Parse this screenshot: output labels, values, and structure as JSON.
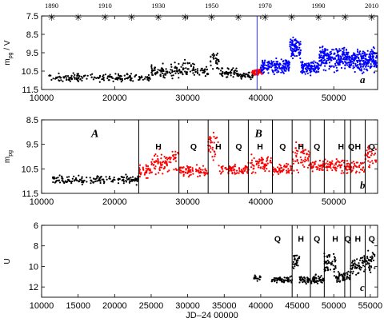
{
  "chart_data": [
    {
      "type": "scatter",
      "panel_letter": "a",
      "ylabel": "m_pg / V",
      "xlabel": "",
      "xlim": [
        10000,
        56000
      ],
      "ylim": [
        11.5,
        7.5
      ],
      "y_inverted": true,
      "xticks": [
        10000,
        20000,
        30000,
        40000,
        50000
      ],
      "xtick_labels": [
        "10000",
        "20000",
        "30000",
        "40000",
        "50000"
      ],
      "yticks": [
        7.5,
        8.5,
        9.5,
        10.5,
        11.5
      ],
      "ytick_labels": [
        "7.5",
        "8.5",
        "9.5",
        "10.5",
        "11.5"
      ],
      "top_axis_years": [
        "1890",
        "1910",
        "1930",
        "1950",
        "1970",
        "1990",
        "2010"
      ],
      "top_axis_year_values": [
        1890,
        1910,
        1930,
        1950,
        1970,
        1990,
        2010
      ],
      "top_axis_star_years": [
        1890,
        1900,
        1910,
        1920,
        1930,
        1940,
        1950,
        1960,
        1970,
        1980,
        1990,
        2000,
        2010
      ],
      "vertical_lines": [
        {
          "x": 39500,
          "color": "#3333ff"
        }
      ],
      "series": [
        {
          "color": "#000000",
          "segments": [
            {
              "x0": 11000,
              "x1": 25000,
              "base": 10.85,
              "spread": 0.3,
              "density": 0.9
            },
            {
              "x0": 25000,
              "x1": 28000,
              "base": 10.55,
              "spread": 0.55,
              "density": 1.4
            },
            {
              "x0": 28000,
              "x1": 31000,
              "base": 10.4,
              "spread": 0.6,
              "density": 1.4
            },
            {
              "x0": 31000,
              "x1": 33000,
              "base": 10.55,
              "spread": 0.35,
              "density": 1
            },
            {
              "x0": 33000,
              "x1": 34300,
              "base": 9.9,
              "spread": 0.75,
              "density": 1.6
            },
            {
              "x0": 34300,
              "x1": 37000,
              "base": 10.6,
              "spread": 0.35,
              "density": 1.3
            },
            {
              "x0": 37000,
              "x1": 39000,
              "base": 10.75,
              "spread": 0.25,
              "density": 1.3
            }
          ]
        },
        {
          "color": "#ff0000",
          "segments": [
            {
              "x0": 38800,
              "x1": 40200,
              "base": 10.55,
              "spread": 0.2,
              "density": 4
            }
          ]
        },
        {
          "color": "#0000ff",
          "segments": [
            {
              "x0": 40000,
              "x1": 44000,
              "base": 10.2,
              "spread": 0.55,
              "density": 3
            },
            {
              "x0": 44000,
              "x1": 45500,
              "base": 9.2,
              "spread": 0.9,
              "density": 4
            },
            {
              "x0": 45500,
              "x1": 48000,
              "base": 10.3,
              "spread": 0.5,
              "density": 3
            },
            {
              "x0": 48000,
              "x1": 52000,
              "base": 9.8,
              "spread": 0.9,
              "density": 4
            },
            {
              "x0": 52000,
              "x1": 56000,
              "base": 9.9,
              "spread": 0.9,
              "density": 4
            }
          ]
        }
      ]
    },
    {
      "type": "scatter",
      "panel_letter": "b",
      "ylabel": "m_pg",
      "xlabel": "",
      "xlim": [
        10000,
        56000
      ],
      "ylim": [
        11.5,
        8.5
      ],
      "y_inverted": true,
      "xticks": [
        10000,
        20000,
        30000,
        40000,
        50000
      ],
      "xtick_labels": [
        "10000",
        "20000",
        "30000",
        "40000",
        "50000"
      ],
      "yticks": [
        8.5,
        9.5,
        10.5,
        11.5
      ],
      "ytick_labels": [
        "8.5",
        "9.5",
        "10.5",
        "11.5"
      ],
      "vertical_lines": [
        23300,
        28800,
        32800,
        35600,
        38300,
        41600,
        44300,
        46800,
        48700,
        51500,
        52300,
        54300
      ],
      "annotations": [
        {
          "text": "A",
          "x": 17300,
          "y": 9.2,
          "style": "italic"
        },
        {
          "text": "B",
          "x": 39700,
          "y": 9.2,
          "style": "italic"
        },
        {
          "text": "H",
          "x": 26000,
          "y": 9.7,
          "style": "bold"
        },
        {
          "text": "Q",
          "x": 30800,
          "y": 9.7,
          "style": "bold"
        },
        {
          "text": "H",
          "x": 34200,
          "y": 9.7,
          "style": "bold"
        },
        {
          "text": "Q",
          "x": 37000,
          "y": 9.7,
          "style": "bold"
        },
        {
          "text": "H",
          "x": 39900,
          "y": 9.7,
          "style": "bold"
        },
        {
          "text": "Q",
          "x": 43000,
          "y": 9.7,
          "style": "bold"
        },
        {
          "text": "H",
          "x": 45500,
          "y": 9.7,
          "style": "bold"
        },
        {
          "text": "Q",
          "x": 47700,
          "y": 9.7,
          "style": "bold"
        },
        {
          "text": "H",
          "x": 51000,
          "y": 9.7,
          "style": "bold"
        },
        {
          "text": "Q",
          "x": 52400,
          "y": 9.7,
          "style": "bold"
        },
        {
          "text": "H",
          "x": 53300,
          "y": 9.7,
          "style": "bold"
        },
        {
          "text": "Q",
          "x": 55200,
          "y": 9.7,
          "style": "bold"
        }
      ],
      "series": [
        {
          "color": "#000000",
          "segments": [
            {
              "x0": 11500,
              "x1": 23300,
              "base": 10.95,
              "spread": 0.25,
              "density": 1
            }
          ]
        },
        {
          "color": "#ff0000",
          "segments": [
            {
              "x0": 23300,
              "x1": 25000,
              "base": 10.6,
              "spread": 0.35,
              "density": 1.5
            },
            {
              "x0": 25000,
              "x1": 28800,
              "base": 10.2,
              "spread": 0.7,
              "density": 1.6
            },
            {
              "x0": 28800,
              "x1": 32800,
              "base": 10.6,
              "spread": 0.3,
              "density": 1.4
            },
            {
              "x0": 32800,
              "x1": 34200,
              "base": 9.6,
              "spread": 0.85,
              "density": 1.7
            },
            {
              "x0": 34200,
              "x1": 38300,
              "base": 10.55,
              "spread": 0.3,
              "density": 1.3
            },
            {
              "x0": 38300,
              "x1": 41600,
              "base": 10.3,
              "spread": 0.55,
              "density": 1.4
            },
            {
              "x0": 41600,
              "x1": 44300,
              "base": 10.5,
              "spread": 0.3,
              "density": 1.4
            },
            {
              "x0": 44300,
              "x1": 46800,
              "base": 10.0,
              "spread": 0.75,
              "density": 1.6
            },
            {
              "x0": 46800,
              "x1": 51500,
              "base": 10.35,
              "spread": 0.4,
              "density": 1.5
            },
            {
              "x0": 51500,
              "x1": 54300,
              "base": 10.45,
              "spread": 0.35,
              "density": 1.5
            },
            {
              "x0": 54300,
              "x1": 55800,
              "base": 10.0,
              "spread": 0.6,
              "density": 1.5
            }
          ]
        }
      ]
    },
    {
      "type": "scatter",
      "panel_letter": "c",
      "ylabel": "U",
      "xlabel": "JD–24 00000",
      "xlim": [
        10000,
        56000
      ],
      "ylim": [
        13,
        6
      ],
      "y_inverted": true,
      "xticks": [
        10000,
        15000,
        20000,
        25000,
        30000,
        35000,
        40000,
        45000,
        50000,
        55000
      ],
      "xtick_labels": [
        "10000",
        "15000",
        "20000",
        "25000",
        "30000",
        "35000",
        "40000",
        "45000",
        "50000",
        "55000"
      ],
      "yticks": [
        6,
        8,
        10,
        12
      ],
      "ytick_labels": [
        "6",
        "8",
        "10",
        "12"
      ],
      "vertical_lines": [
        44300,
        46800,
        48700,
        51500,
        52300,
        54300
      ],
      "annotations": [
        {
          "text": "Q",
          "x": 42300,
          "y": 7.6,
          "style": "bold"
        },
        {
          "text": "H",
          "x": 45500,
          "y": 7.6,
          "style": "bold"
        },
        {
          "text": "Q",
          "x": 47700,
          "y": 7.6,
          "style": "bold"
        },
        {
          "text": "H",
          "x": 50200,
          "y": 7.6,
          "style": "bold"
        },
        {
          "text": "Q",
          "x": 51900,
          "y": 7.6,
          "style": "bold"
        },
        {
          "text": "H",
          "x": 53300,
          "y": 7.6,
          "style": "bold"
        },
        {
          "text": "Q",
          "x": 55200,
          "y": 7.6,
          "style": "bold"
        }
      ],
      "series": [
        {
          "color": "#000000",
          "segments": [
            {
              "x0": 39000,
              "x1": 40000,
              "base": 11.1,
              "spread": 0.5,
              "density": 1.2
            },
            {
              "x0": 41500,
              "x1": 44300,
              "base": 11.3,
              "spread": 0.5,
              "density": 1.5
            },
            {
              "x0": 44300,
              "x1": 45300,
              "base": 9.5,
              "spread": 1.3,
              "density": 2
            },
            {
              "x0": 45300,
              "x1": 48700,
              "base": 11.3,
              "spread": 0.6,
              "density": 1.8
            },
            {
              "x0": 48700,
              "x1": 50300,
              "base": 9.7,
              "spread": 1.5,
              "density": 2.2
            },
            {
              "x0": 50300,
              "x1": 52300,
              "base": 11.0,
              "spread": 0.8,
              "density": 2
            },
            {
              "x0": 52300,
              "x1": 53800,
              "base": 10.0,
              "spread": 1.3,
              "density": 2
            },
            {
              "x0": 53800,
              "x1": 55800,
              "base": 9.6,
              "spread": 1.4,
              "density": 2
            }
          ]
        }
      ]
    }
  ]
}
